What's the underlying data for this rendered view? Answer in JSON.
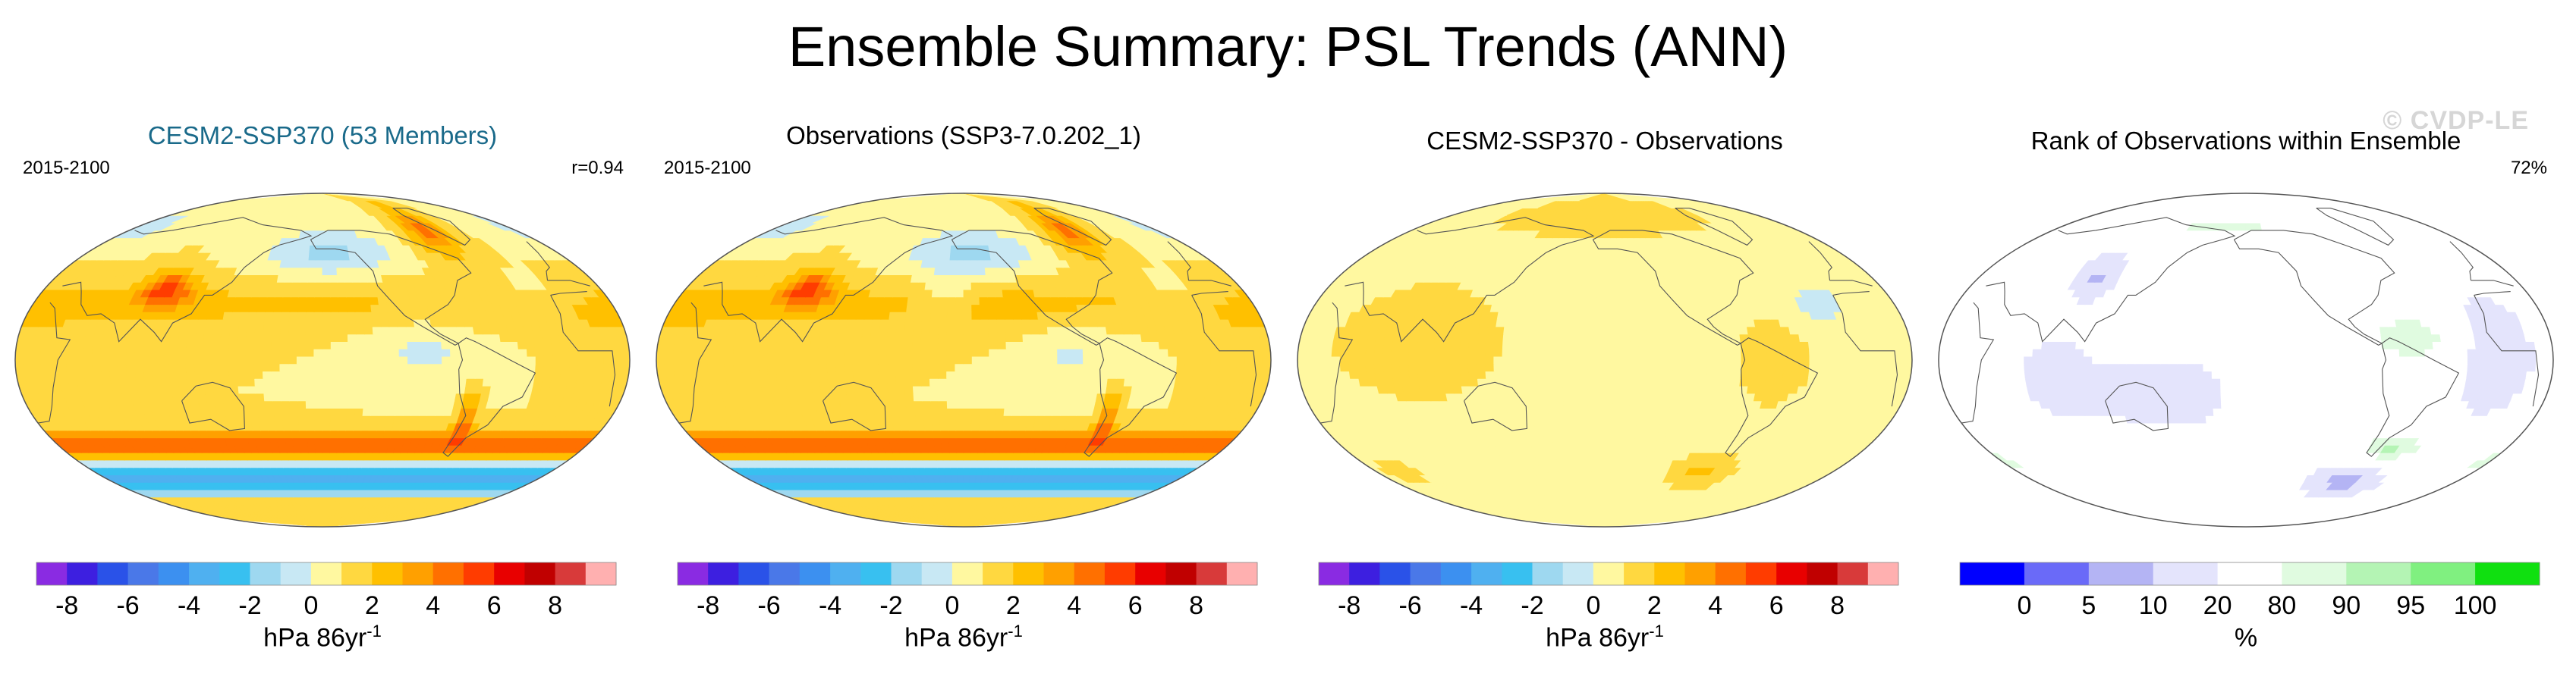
{
  "title": "Ensemble Summary: PSL Trends (ANN)",
  "watermark": "© CVDP-LE",
  "chart_data": [
    {
      "type": "heatmap",
      "title": "CESM2-SSP370 (53 Members)",
      "title_color": "#1a6a8a",
      "period": "2015-2100",
      "stat": "r=0.94",
      "field": "ensemble_mean",
      "colorbar": {
        "colors": [
          "#8a2be2",
          "#3d1fe0",
          "#2a52e8",
          "#4a78e8",
          "#3c90f0",
          "#4fb0f0",
          "#38c0f0",
          "#9ed8f0",
          "#c8e8f4",
          "#fff8a0",
          "#ffd840",
          "#ffc000",
          "#ffa000",
          "#ff7000",
          "#ff3c00",
          "#e80000",
          "#c00000",
          "#d83a3a",
          "#ffb0b0"
        ],
        "ticks": [
          "-8",
          "-6",
          "-4",
          "-2",
          "0",
          "2",
          "4",
          "6",
          "8"
        ],
        "tick_edges": [
          1,
          3,
          5,
          7,
          9,
          11,
          13,
          15,
          17
        ],
        "units": "hPa 86yr",
        "units_exp": "-1"
      }
    },
    {
      "type": "heatmap",
      "title": "Observations (SSP3-7.0.202_1)",
      "title_color": "#000000",
      "period": "2015-2100",
      "stat": "",
      "field": "observations",
      "colorbar": {
        "colors": [
          "#8a2be2",
          "#3d1fe0",
          "#2a52e8",
          "#4a78e8",
          "#3c90f0",
          "#4fb0f0",
          "#38c0f0",
          "#9ed8f0",
          "#c8e8f4",
          "#fff8a0",
          "#ffd840",
          "#ffc000",
          "#ffa000",
          "#ff7000",
          "#ff3c00",
          "#e80000",
          "#c00000",
          "#d83a3a",
          "#ffb0b0"
        ],
        "ticks": [
          "-8",
          "-6",
          "-4",
          "-2",
          "0",
          "2",
          "4",
          "6",
          "8"
        ],
        "tick_edges": [
          1,
          3,
          5,
          7,
          9,
          11,
          13,
          15,
          17
        ],
        "units": "hPa 86yr",
        "units_exp": "-1"
      }
    },
    {
      "type": "heatmap",
      "title": "CESM2-SSP370 - Observations",
      "title_color": "#000000",
      "period": "",
      "stat": "",
      "field": "difference",
      "colorbar": {
        "colors": [
          "#8a2be2",
          "#3d1fe0",
          "#2a52e8",
          "#4a78e8",
          "#3c90f0",
          "#4fb0f0",
          "#38c0f0",
          "#9ed8f0",
          "#c8e8f4",
          "#fff8a0",
          "#ffd840",
          "#ffc000",
          "#ffa000",
          "#ff7000",
          "#ff3c00",
          "#e80000",
          "#c00000",
          "#d83a3a",
          "#ffb0b0"
        ],
        "ticks": [
          "-8",
          "-6",
          "-4",
          "-2",
          "0",
          "2",
          "4",
          "6",
          "8"
        ],
        "tick_edges": [
          1,
          3,
          5,
          7,
          9,
          11,
          13,
          15,
          17
        ],
        "units": "hPa 86yr",
        "units_exp": "-1"
      }
    },
    {
      "type": "heatmap",
      "title": "Rank of Observations within Ensemble",
      "title_color": "#000000",
      "period": "",
      "stat": "72%",
      "field": "rank",
      "colorbar": {
        "colors": [
          "#0000ff",
          "#6a6af8",
          "#b4b4f4",
          "#e4e4fc",
          "#ffffff",
          "#e0fbe0",
          "#b4f4b4",
          "#80f080",
          "#10e010"
        ],
        "ticks": [
          "0",
          "5",
          "10",
          "20",
          "80",
          "90",
          "95",
          "100"
        ],
        "tick_edges": [
          1,
          2,
          3,
          4,
          5,
          6,
          7,
          8
        ],
        "units": "%",
        "units_exp": ""
      }
    }
  ]
}
